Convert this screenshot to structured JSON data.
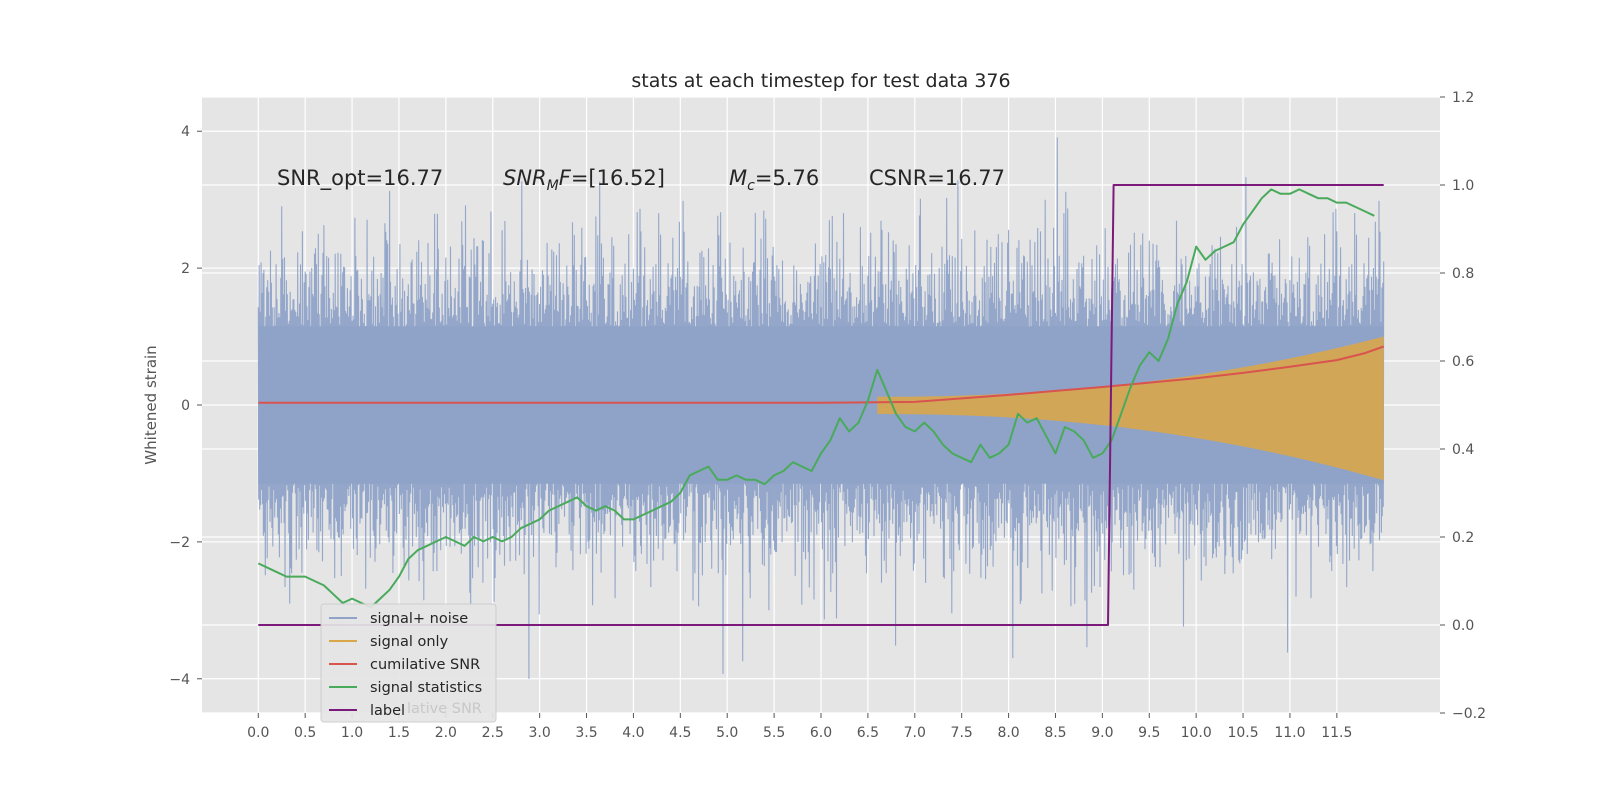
{
  "chart_data": {
    "type": "line",
    "title": "stats at each timestep for test data 376",
    "ylabel": "Whitened strain",
    "xlim": [
      -0.6,
      12.6
    ],
    "ylim": [
      -4.5,
      4.5
    ],
    "y2lim": [
      -0.2,
      1.2
    ],
    "x_ticks": [
      "0.0",
      "0.5",
      "1.0",
      "1.5",
      "2.0",
      "2.5",
      "3.0",
      "3.5",
      "4.0",
      "4.5",
      "5.0",
      "5.5",
      "6.0",
      "6.5",
      "7.0",
      "7.5",
      "8.0",
      "8.5",
      "9.0",
      "9.5",
      "10.0",
      "10.5",
      "11.0",
      "11.5"
    ],
    "y_ticks": [
      4,
      2,
      0,
      -2,
      -4
    ],
    "y_tick_labels": [
      "4",
      "2",
      "0",
      "−2",
      "−4"
    ],
    "y2_ticks": [
      1.2,
      1.0,
      0.8,
      0.6,
      0.4,
      0.2,
      0.0,
      -0.2
    ],
    "y2_tick_labels": [
      "1.2",
      "1.0",
      "0.8",
      "0.6",
      "0.4",
      "0.2",
      "0.0",
      "−0.2"
    ],
    "grid": true,
    "annotations": [
      {
        "parts": [
          {
            "t": "SNR_opt=16.77"
          }
        ]
      },
      {
        "parts": [
          {
            "t": "SNR",
            "style": "italic"
          },
          {
            "t": "M",
            "style": "italic-sub"
          },
          {
            "t": "F",
            "style": "italic"
          },
          {
            "t": "=[16.52]"
          }
        ]
      },
      {
        "parts": [
          {
            "t": "M",
            "style": "italic"
          },
          {
            "t": "c",
            "style": "italic-sub"
          },
          {
            "t": "=5.76"
          }
        ]
      },
      {
        "parts": [
          {
            "t": "CSNR=16.77"
          }
        ]
      }
    ],
    "legend": {
      "placement": "lower-left",
      "entries": [
        "signal+ noise",
        "signal only",
        "cumilative SNR",
        "signal statistics",
        "label"
      ],
      "ghost_text": "lative SNR"
    },
    "series": [
      {
        "name": "signal+ noise",
        "axis": "left",
        "color": "#8fa3c8",
        "kind": "noise",
        "time_range": [
          0,
          12
        ],
        "envelope": 2.0,
        "max_peak": 4.1,
        "min_trough": -4.1
      },
      {
        "name": "signal only",
        "axis": "left",
        "color": "#d9a64a",
        "kind": "chirp",
        "start": 6.6,
        "end": 12.0,
        "max_amplitude": 1.0,
        "min_value": -1.1
      },
      {
        "name": "cumilative SNR",
        "axis": "right",
        "color": "#d9534f",
        "x": [
          0,
          6.0,
          6.5,
          7.0,
          7.5,
          8.0,
          8.5,
          9.0,
          9.5,
          10.0,
          10.5,
          11.0,
          11.5,
          11.8,
          12.0
        ],
        "y": [
          0.505,
          0.505,
          0.506,
          0.507,
          0.515,
          0.523,
          0.532,
          0.541,
          0.551,
          0.561,
          0.573,
          0.587,
          0.602,
          0.618,
          0.633
        ]
      },
      {
        "name": "signal statistics",
        "axis": "right",
        "color": "#4aaa5c",
        "x": [
          0.0,
          0.1,
          0.2,
          0.3,
          0.4,
          0.5,
          0.6,
          0.7,
          0.8,
          0.9,
          1.0,
          1.1,
          1.2,
          1.3,
          1.4,
          1.5,
          1.6,
          1.7,
          1.8,
          1.9,
          2.0,
          2.1,
          2.2,
          2.3,
          2.4,
          2.5,
          2.6,
          2.7,
          2.8,
          2.9,
          3.0,
          3.1,
          3.2,
          3.3,
          3.4,
          3.5,
          3.6,
          3.7,
          3.8,
          3.9,
          4.0,
          4.1,
          4.2,
          4.3,
          4.4,
          4.5,
          4.6,
          4.7,
          4.8,
          4.9,
          5.0,
          5.1,
          5.2,
          5.3,
          5.4,
          5.5,
          5.6,
          5.7,
          5.8,
          5.9,
          6.0,
          6.1,
          6.2,
          6.3,
          6.4,
          6.5,
          6.6,
          6.7,
          6.8,
          6.9,
          7.0,
          7.1,
          7.2,
          7.3,
          7.4,
          7.5,
          7.6,
          7.7,
          7.8,
          7.9,
          8.0,
          8.1,
          8.2,
          8.3,
          8.4,
          8.5,
          8.6,
          8.7,
          8.8,
          8.9,
          9.0,
          9.1,
          9.2,
          9.3,
          9.4,
          9.5,
          9.6,
          9.7,
          9.8,
          9.9,
          10.0,
          10.1,
          10.2,
          10.3,
          10.4,
          10.5,
          10.6,
          10.7,
          10.8,
          10.9,
          11.0,
          11.1,
          11.2,
          11.3,
          11.4,
          11.5,
          11.6,
          11.7,
          11.8,
          11.9
        ],
        "y": [
          0.14,
          0.13,
          0.12,
          0.11,
          0.11,
          0.11,
          0.1,
          0.09,
          0.07,
          0.05,
          0.06,
          0.05,
          0.04,
          0.06,
          0.08,
          0.11,
          0.15,
          0.17,
          0.18,
          0.19,
          0.2,
          0.19,
          0.18,
          0.2,
          0.19,
          0.2,
          0.19,
          0.2,
          0.22,
          0.23,
          0.24,
          0.26,
          0.27,
          0.28,
          0.29,
          0.27,
          0.26,
          0.27,
          0.26,
          0.24,
          0.24,
          0.25,
          0.26,
          0.27,
          0.28,
          0.3,
          0.34,
          0.35,
          0.36,
          0.33,
          0.33,
          0.34,
          0.33,
          0.33,
          0.32,
          0.34,
          0.35,
          0.37,
          0.36,
          0.35,
          0.39,
          0.42,
          0.47,
          0.44,
          0.46,
          0.51,
          0.58,
          0.53,
          0.48,
          0.45,
          0.44,
          0.46,
          0.44,
          0.41,
          0.39,
          0.38,
          0.37,
          0.41,
          0.38,
          0.39,
          0.41,
          0.48,
          0.46,
          0.47,
          0.43,
          0.39,
          0.45,
          0.44,
          0.42,
          0.38,
          0.39,
          0.42,
          0.48,
          0.54,
          0.59,
          0.62,
          0.6,
          0.65,
          0.73,
          0.78,
          0.86,
          0.83,
          0.85,
          0.86,
          0.87,
          0.91,
          0.94,
          0.97,
          0.99,
          0.98,
          0.98,
          0.99,
          0.98,
          0.97,
          0.97,
          0.96,
          0.96,
          0.95,
          0.94,
          0.93
        ]
      },
      {
        "name": "label",
        "axis": "right",
        "color": "#7b1a7b",
        "x": [
          0,
          9.06,
          9.12,
          12.0
        ],
        "y": [
          0.0,
          0.0,
          1.0,
          1.0
        ]
      }
    ]
  }
}
